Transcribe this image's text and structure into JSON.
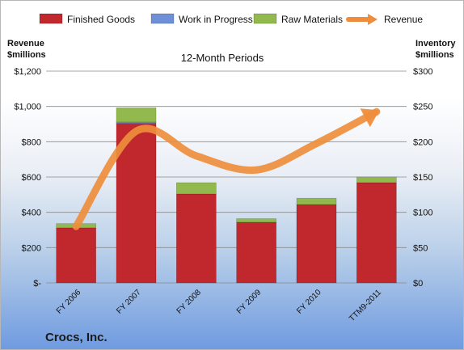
{
  "chart_data": {
    "type": "bar",
    "subtitle": "12-Month Periods",
    "company": "Crocs, Inc.",
    "categories": [
      "FY 2006",
      "FY 2007",
      "FY 2008",
      "FY 2009",
      "FY 2010",
      "TTM9-2011"
    ],
    "left_axis": {
      "title_line1": "Revenue",
      "title_line2": "$millions",
      "range": [
        0,
        1200
      ],
      "ticks": [
        0,
        200,
        400,
        600,
        800,
        1000,
        1200
      ],
      "tick_labels": [
        "$-",
        "$200",
        "$400",
        "$600",
        "$800",
        "$1,000",
        "$1,200"
      ]
    },
    "right_axis": {
      "title_line1": "Inventory",
      "title_line2": "$millions",
      "range": [
        0,
        300
      ],
      "ticks": [
        0,
        50,
        100,
        150,
        200,
        250,
        300
      ],
      "tick_labels": [
        "$0",
        "$50",
        "$100",
        "$150",
        "$200",
        "$250",
        "$300"
      ]
    },
    "series": [
      {
        "name": "Finished Goods",
        "axis": "right",
        "kind": "stacked-bar",
        "color": "#c0282d",
        "values": [
          78,
          226,
          126,
          86,
          111,
          142
        ]
      },
      {
        "name": "Work in Progress",
        "axis": "right",
        "kind": "stacked-bar",
        "color": "#6f8fd8",
        "values": [
          0,
          2,
          0,
          0,
          0,
          0
        ]
      },
      {
        "name": "Raw Materials",
        "axis": "right",
        "kind": "stacked-bar",
        "color": "#92b94d",
        "values": [
          6,
          20,
          16,
          5,
          9,
          8
        ]
      },
      {
        "name": "Revenue",
        "axis": "left",
        "kind": "line",
        "color": "#ee8e3c",
        "values": [
          320,
          860,
          720,
          640,
          790,
          970
        ]
      }
    ],
    "grid": true,
    "legend_position": "top"
  }
}
